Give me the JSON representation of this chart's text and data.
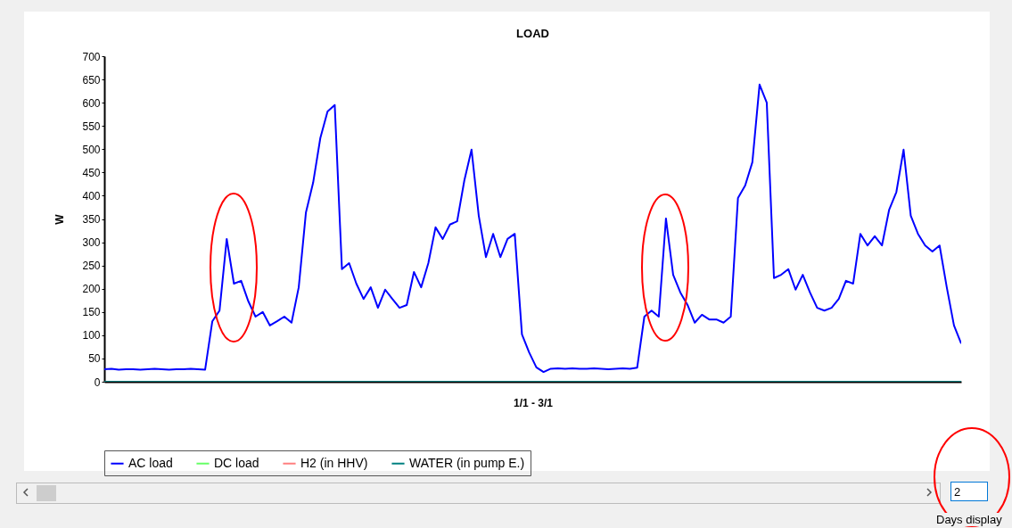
{
  "chart_data": {
    "type": "line",
    "title": "LOAD",
    "xlabel": "1/1 - 3/1",
    "ylabel": "W",
    "categories": [
      null,
      null,
      null,
      null,
      null,
      null,
      null,
      null,
      null,
      null,
      null,
      null,
      null,
      null,
      null,
      null,
      null,
      null,
      null,
      null,
      null,
      null,
      null,
      null,
      null,
      null,
      null,
      null,
      null,
      null,
      null,
      null,
      null,
      null,
      null,
      null,
      null,
      null,
      null,
      null,
      null,
      null,
      null,
      null,
      null,
      null,
      null,
      null,
      null,
      null,
      null,
      null,
      null,
      null,
      null,
      null,
      null,
      null,
      null,
      null,
      null,
      null,
      null,
      null,
      null,
      null,
      null,
      null,
      null,
      null,
      null,
      null,
      null,
      null,
      null,
      null,
      null,
      null,
      null,
      null,
      null,
      null,
      null,
      null,
      null,
      null,
      null,
      null,
      null,
      null,
      null,
      null,
      null,
      null,
      null,
      null,
      null,
      null,
      null,
      null,
      null,
      null,
      null,
      null,
      null,
      null,
      null,
      null,
      null,
      null,
      null,
      null,
      null,
      null,
      null,
      null,
      null,
      null,
      null,
      null
    ],
    "series": [
      {
        "name": "AC load",
        "color": "#0000ff",
        "values": [
          27,
          28,
          26,
          27,
          27,
          26,
          27,
          28,
          27,
          26,
          27,
          27,
          28,
          27,
          26,
          130,
          153,
          307,
          211,
          217,
          173,
          140,
          150,
          121,
          130,
          140,
          127,
          203,
          364,
          428,
          524,
          581,
          595,
          242,
          255,
          211,
          178,
          203,
          159,
          198,
          178,
          159,
          165,
          236,
          203,
          255,
          332,
          307,
          338,
          345,
          433,
          499,
          357,
          268,
          318,
          268,
          307,
          318,
          102,
          63,
          31,
          21,
          28,
          29,
          28,
          29,
          28,
          28,
          29,
          28,
          27,
          28,
          29,
          28,
          30,
          140,
          153,
          140,
          351,
          230,
          192,
          165,
          127,
          144,
          134,
          134,
          127,
          140,
          395,
          422,
          472,
          639,
          600,
          223,
          230,
          242,
          198,
          230,
          192,
          159,
          153,
          159,
          178,
          217,
          211,
          318,
          293,
          313,
          293,
          370,
          408,
          499,
          357,
          318,
          293,
          280,
          293,
          203,
          121,
          82
        ]
      },
      {
        "name": "DC load",
        "color": "#66ff66",
        "values": [
          null,
          null,
          null,
          null,
          null,
          null,
          null,
          null,
          null,
          null,
          null,
          null,
          null,
          null,
          null,
          null,
          null,
          null,
          null,
          null,
          null,
          null,
          null,
          null,
          null,
          null,
          null,
          null,
          null,
          null,
          null,
          null,
          null,
          null,
          null,
          null,
          null,
          null,
          null,
          null,
          null,
          null,
          null,
          null,
          null,
          null,
          null,
          null,
          null,
          null,
          null,
          null,
          null,
          null,
          null,
          null,
          null,
          null,
          null,
          null,
          null,
          null,
          null,
          null,
          null,
          null,
          null,
          null,
          null,
          null,
          null,
          null,
          null,
          null,
          null,
          null,
          null,
          null,
          null,
          null,
          null,
          null,
          null,
          null,
          null,
          null,
          null,
          null,
          null,
          null,
          null,
          null,
          null,
          null,
          null,
          null,
          null,
          null,
          null,
          null,
          null,
          null,
          null,
          null,
          null,
          null,
          null,
          null,
          null,
          null,
          null,
          null,
          null,
          null,
          null,
          null,
          null,
          null,
          null,
          null
        ]
      },
      {
        "name": "H2 (in HHV)",
        "color": "#ff7f7f",
        "values": [
          null,
          null,
          null,
          null,
          null,
          null,
          null,
          null,
          null,
          null,
          null,
          null,
          null,
          null,
          null,
          null,
          null,
          null,
          null,
          null,
          null,
          null,
          null,
          null,
          null,
          null,
          null,
          null,
          null,
          null,
          null,
          null,
          null,
          null,
          null,
          null,
          null,
          null,
          null,
          null,
          null,
          null,
          null,
          null,
          null,
          null,
          null,
          null,
          null,
          null,
          null,
          null,
          null,
          null,
          null,
          null,
          null,
          null,
          null,
          null,
          null,
          null,
          null,
          null,
          null,
          null,
          null,
          null,
          null,
          null,
          null,
          null,
          null,
          null,
          null,
          null,
          null,
          null,
          null,
          null,
          null,
          null,
          null,
          null,
          null,
          null,
          null,
          null,
          null,
          null,
          null,
          null,
          null,
          null,
          null,
          null,
          null,
          null,
          null,
          null,
          null,
          null,
          null,
          null,
          null,
          null,
          null,
          null,
          null,
          null,
          null,
          null,
          null,
          null,
          null,
          null,
          null,
          null,
          null,
          null
        ]
      },
      {
        "name": "WATER (in pump E.)",
        "color": "#008080",
        "values": [
          0,
          0,
          0,
          0,
          0,
          0,
          0,
          0,
          0,
          0,
          0,
          0,
          0,
          0,
          0,
          0,
          0,
          0,
          0,
          0,
          0,
          0,
          0,
          0,
          0,
          0,
          0,
          0,
          0,
          0,
          0,
          0,
          0,
          0,
          0,
          0,
          0,
          0,
          0,
          0,
          0,
          0,
          0,
          0,
          0,
          0,
          0,
          0,
          0,
          0,
          0,
          0,
          0,
          0,
          0,
          0,
          0,
          0,
          0,
          0,
          0,
          0,
          0,
          0,
          0,
          0,
          0,
          0,
          0,
          0,
          0,
          0,
          0,
          0,
          0,
          0,
          0,
          0,
          0,
          0,
          0,
          0,
          0,
          0,
          0,
          0,
          0,
          0,
          0,
          0,
          0,
          0,
          0,
          0,
          0,
          0,
          0,
          0,
          0,
          0,
          0,
          0,
          0,
          0,
          0,
          0,
          0,
          0,
          0,
          0,
          0,
          0,
          0,
          0,
          0,
          0,
          0,
          0,
          0,
          0
        ]
      }
    ],
    "ylim": [
      0,
      700
    ],
    "yticks": [
      0,
      50,
      100,
      150,
      200,
      250,
      300,
      350,
      400,
      450,
      500,
      550,
      600,
      650,
      700
    ],
    "grid": false,
    "legend": "bottom",
    "tick_labels": "y",
    "marker": "none",
    "line_style": "solid",
    "annotations": [
      "2",
      "Days display"
    ]
  }
}
